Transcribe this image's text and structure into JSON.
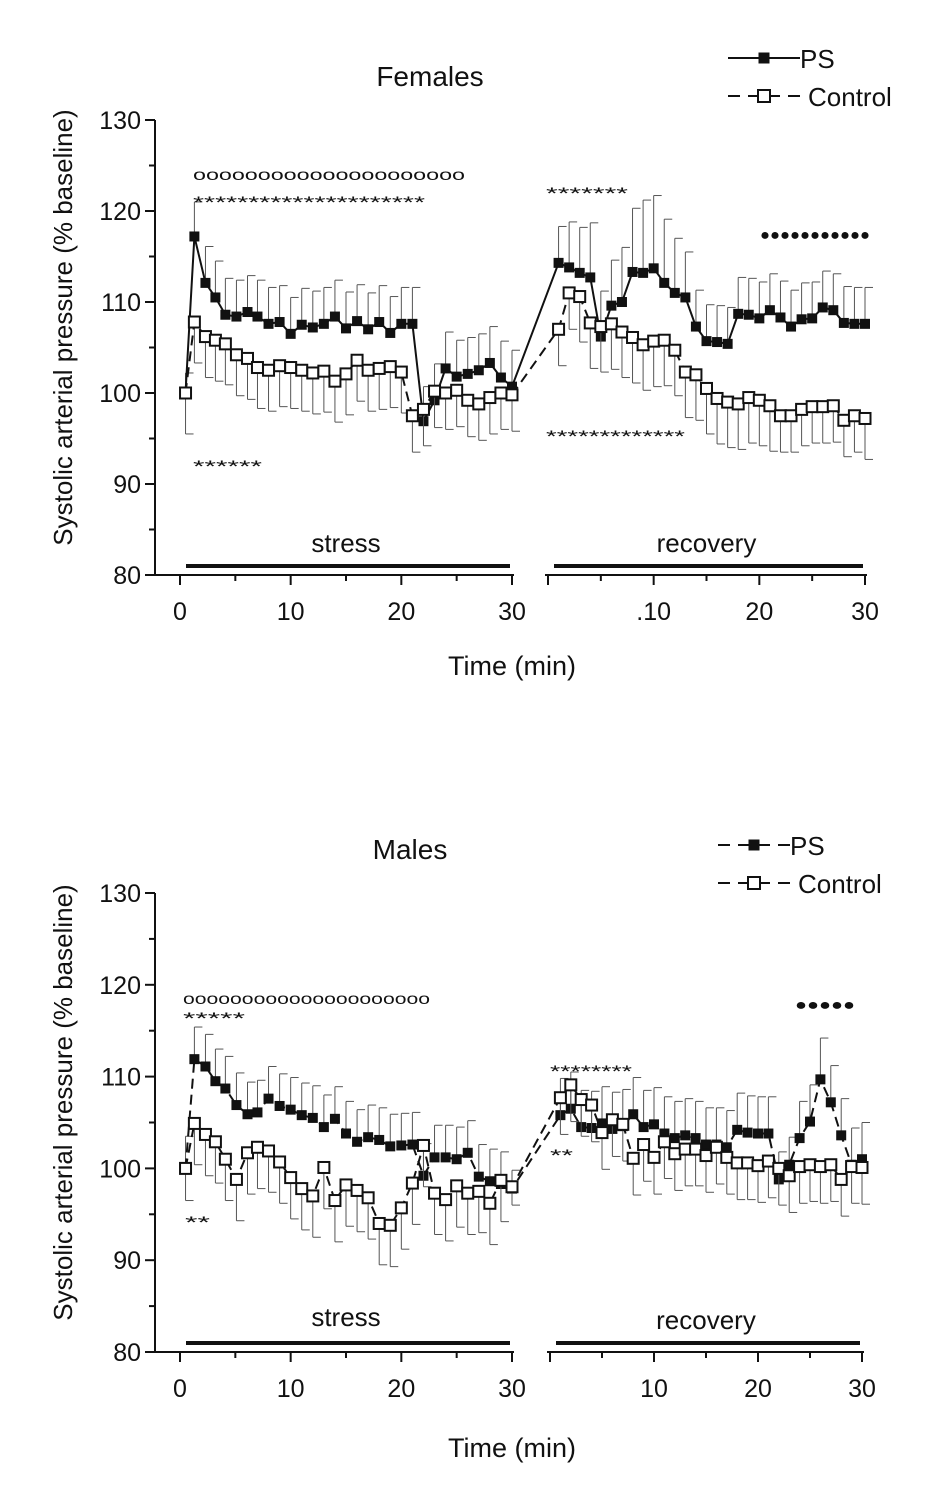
{
  "chart_data": [
    {
      "type": "line",
      "title": "Females",
      "ylabel": "Systolic arterial pressure (% baseline)",
      "xlabel": "Time (min)",
      "ylim": [
        80,
        130
      ],
      "yticks": [
        "80",
        "90",
        "100",
        "110",
        "120",
        "130"
      ],
      "segments": [
        {
          "xlim": [
            0,
            30
          ],
          "xticks": [
            "0",
            "10",
            "20",
            "30"
          ],
          "phase_label": "stress"
        },
        {
          "xlim": [
            0,
            30
          ],
          "xticks": [
            "",
            ".10",
            "20",
            "30"
          ],
          "phase_label": "recovery"
        }
      ],
      "legend": {
        "position": "top-right",
        "ps_label": "PS",
        "control_label": "Control"
      },
      "series": [
        {
          "name": "PS",
          "marker": "filled-square",
          "line": "solid",
          "stress_x": [
            0.5,
            1.3,
            2.3,
            3.2,
            4.1,
            5.1,
            6.1,
            7.0,
            8.0,
            9.0,
            10.0,
            11.0,
            12.0,
            13.0,
            14.0,
            15.0,
            16.0,
            17.0,
            18.0,
            19.0,
            20.0,
            21.0,
            22.0,
            23.0,
            24.0,
            25.0,
            26.0,
            27.0,
            28.0,
            29.0,
            30.0
          ],
          "stress_y": [
            100,
            117.2,
            112.1,
            110.5,
            108.6,
            108.4,
            108.9,
            108.4,
            107.6,
            107.8,
            106.5,
            107.5,
            107.2,
            107.6,
            108.4,
            107.1,
            107.9,
            107.0,
            107.8,
            106.6,
            107.6,
            107.6,
            96.9,
            99.2,
            102.7,
            101.8,
            102.1,
            102.5,
            103.3,
            101.7,
            100.7
          ],
          "stress_err": [
            2.2,
            3.8,
            4,
            4,
            4,
            4,
            4,
            4,
            4,
            4,
            4,
            4,
            4,
            4,
            4,
            4,
            4,
            4,
            4,
            4,
            4,
            4,
            3.8,
            4,
            4,
            4,
            4,
            4,
            4,
            4,
            4
          ],
          "recovery_x": [
            1.0,
            2.0,
            3.0,
            4.0,
            5.0,
            6.0,
            7.0,
            8.0,
            9.0,
            10.0,
            11.0,
            12.0,
            13.0,
            14.0,
            15.0,
            16.0,
            17.0,
            18.0,
            19.0,
            20.0,
            21.0,
            22.0,
            23.0,
            24.0,
            25.0,
            26.0,
            27.0,
            28.0,
            29.0,
            30.0
          ],
          "recovery_y": [
            114.3,
            113.8,
            113.2,
            112.7,
            106.2,
            109.6,
            110.0,
            113.3,
            113.2,
            113.7,
            112.1,
            111.0,
            110.5,
            107.3,
            105.7,
            105.6,
            105.4,
            108.7,
            108.6,
            108.2,
            109.1,
            108.3,
            107.3,
            108.1,
            108.2,
            109.4,
            109.1,
            107.7,
            107.6,
            107.6
          ],
          "recovery_err": [
            4,
            5,
            5,
            6,
            5,
            5,
            6,
            7,
            8,
            8,
            7,
            6,
            5,
            4,
            4,
            4,
            4,
            4,
            4,
            4,
            4,
            4,
            4,
            4,
            4,
            4,
            4,
            4,
            4,
            4
          ]
        },
        {
          "name": "Control",
          "marker": "open-square",
          "line": "dashed",
          "stress_x": [
            0.5,
            1.3,
            2.3,
            3.2,
            4.1,
            5.1,
            6.1,
            7.0,
            8.0,
            9.0,
            10.0,
            11.0,
            12.0,
            13.0,
            14.0,
            15.0,
            16.0,
            17.0,
            18.0,
            19.0,
            20.0,
            21.0,
            22.0,
            23.0,
            24.0,
            25.0,
            26.0,
            27.0,
            28.0,
            29.0,
            30.0
          ],
          "stress_y": [
            100,
            107.8,
            106.2,
            105.8,
            105.4,
            104.2,
            103.8,
            102.8,
            102.5,
            103.0,
            102.8,
            102.5,
            102.2,
            102.4,
            101.3,
            102.1,
            103.6,
            102.5,
            102.7,
            102.9,
            102.3,
            97.5,
            98.2,
            100.2,
            100.0,
            100.3,
            99.2,
            98.8,
            99.5,
            100.0,
            99.8
          ],
          "stress_err": [
            4.5,
            4.5,
            4.5,
            4.5,
            4.5,
            4.5,
            4.5,
            4.5,
            4.5,
            4.5,
            4.5,
            4.5,
            4.5,
            4.5,
            4.5,
            4.5,
            4.5,
            4.5,
            4.5,
            4.5,
            4.5,
            4,
            4,
            4,
            4,
            4,
            4,
            4,
            4,
            4,
            4
          ],
          "recovery_x": [
            1.0,
            2.0,
            3.0,
            4.0,
            5.0,
            6.0,
            7.0,
            8.0,
            9.0,
            10.0,
            11.0,
            12.0,
            13.0,
            14.0,
            15.0,
            16.0,
            17.0,
            18.0,
            19.0,
            20.0,
            21.0,
            22.0,
            23.0,
            24.0,
            25.0,
            26.0,
            27.0,
            28.0,
            29.0,
            30.0
          ],
          "recovery_y": [
            107.0,
            111.0,
            110.6,
            107.7,
            107.3,
            107.6,
            106.7,
            106.1,
            105.3,
            105.7,
            105.8,
            104.7,
            102.3,
            102.0,
            100.5,
            99.4,
            99.0,
            98.8,
            99.5,
            99.2,
            98.6,
            97.5,
            97.5,
            98.2,
            98.5,
            98.5,
            98.6,
            97.0,
            97.5,
            97.2
          ],
          "recovery_err": [
            4,
            4,
            5,
            5,
            5,
            5,
            5,
            5,
            5,
            5,
            5,
            5,
            5,
            5,
            5,
            5,
            5,
            5,
            5,
            5,
            5,
            4,
            4,
            4,
            4,
            4,
            4,
            4,
            4,
            4.5
          ]
        }
      ],
      "significance": [
        {
          "text": "ooooooooooooooooooooo",
          "style": "open-circles"
        },
        {
          "text": "*********************",
          "style": "stars"
        },
        {
          "text": "******",
          "style": "stars"
        },
        {
          "text": "*******",
          "style": "stars"
        },
        {
          "text": "*************",
          "style": "stars"
        },
        {
          "text": "●●●●●●●●●●●",
          "style": "filled-circles"
        }
      ]
    },
    {
      "type": "line",
      "title": "Males",
      "ylabel": "Systolic arterial pressure (% baseline)",
      "xlabel": "Time (min)",
      "ylim": [
        80,
        130
      ],
      "yticks": [
        "80",
        "90",
        "100",
        "110",
        "120",
        "130"
      ],
      "segments": [
        {
          "xlim": [
            0,
            30
          ],
          "xticks": [
            "0",
            "10",
            "20",
            "30"
          ],
          "phase_label": "stress"
        },
        {
          "xlim": [
            0,
            30
          ],
          "xticks": [
            "",
            "10",
            "20",
            "30"
          ],
          "phase_label": "recovery"
        }
      ],
      "legend": {
        "position": "top-right",
        "ps_label": "PS",
        "control_label": "Control"
      },
      "series": [
        {
          "name": "PS",
          "marker": "filled-square",
          "line": "dashed",
          "stress_x": [
            0.5,
            1.3,
            2.3,
            3.2,
            4.1,
            5.1,
            6.1,
            7.0,
            8.0,
            9.0,
            10.0,
            11.0,
            12.0,
            13.0,
            14.0,
            15.0,
            16.0,
            17.0,
            18.0,
            19.0,
            20.0,
            21.0,
            22.0,
            23.0,
            24.0,
            25.0,
            26.0,
            27.0,
            28.0,
            29.0,
            30.0
          ],
          "stress_y": [
            100,
            111.9,
            111.1,
            109.5,
            108.7,
            106.9,
            105.9,
            106.1,
            107.6,
            106.8,
            106.4,
            105.8,
            105.5,
            104.5,
            105.4,
            103.8,
            102.9,
            103.4,
            103.1,
            102.4,
            102.5,
            102.6,
            99.2,
            101.2,
            101.2,
            101.0,
            101.7,
            99.1,
            98.6,
            98.3,
            97.8
          ],
          "stress_err": [
            3.5,
            3.5,
            3.5,
            3.5,
            3.5,
            3.5,
            3.5,
            3.5,
            3.5,
            3.5,
            3.5,
            3.5,
            3.5,
            3.5,
            3.5,
            3.5,
            3.5,
            3.5,
            3.5,
            3.5,
            3.5,
            3.5,
            3.5,
            3.5,
            3.5,
            3.5,
            3.5,
            3.5,
            3.5,
            3.5,
            2
          ],
          "recovery_x": [
            1.0,
            2.0,
            3.0,
            4.0,
            5.0,
            6.0,
            7.0,
            8.0,
            9.0,
            10.0,
            11.0,
            12.0,
            13.0,
            14.0,
            15.0,
            16.0,
            17.0,
            18.0,
            19.0,
            20.0,
            21.0,
            22.0,
            23.0,
            24.0,
            25.0,
            26.0,
            27.0,
            28.0,
            29.0,
            30.0
          ],
          "recovery_y": [
            105.8,
            106.5,
            104.5,
            104.4,
            104.9,
            104.3,
            104.6,
            105.9,
            104.5,
            104.8,
            103.8,
            103.3,
            103.6,
            103.3,
            102.6,
            102.6,
            102.3,
            104.2,
            103.9,
            103.8,
            103.8,
            98.8,
            100.4,
            103.3,
            105.1,
            109.7,
            107.2,
            103.6,
            100.4,
            101.0
          ],
          "recovery_err": [
            4,
            4,
            4,
            4,
            4,
            4,
            4,
            4,
            4,
            4,
            4,
            4,
            4,
            4,
            4,
            4,
            4,
            4,
            4,
            4,
            4,
            3,
            3,
            4,
            4,
            4.5,
            4,
            4,
            4,
            4
          ]
        },
        {
          "name": "Control",
          "marker": "open-square",
          "line": "dashed",
          "stress_x": [
            0.5,
            1.3,
            2.3,
            3.2,
            4.1,
            5.1,
            6.1,
            7.0,
            8.0,
            9.0,
            10.0,
            11.0,
            12.0,
            13.0,
            14.0,
            15.0,
            16.0,
            17.0,
            18.0,
            19.0,
            20.0,
            21.0,
            22.0,
            23.0,
            24.0,
            25.0,
            26.0,
            27.0,
            28.0,
            29.0,
            30.0
          ],
          "stress_y": [
            100,
            104.9,
            103.7,
            102.9,
            101.0,
            98.8,
            101.7,
            102.3,
            101.9,
            100.7,
            99.0,
            97.8,
            97.0,
            100.1,
            96.5,
            98.2,
            97.6,
            96.8,
            94.0,
            93.8,
            95.7,
            98.4,
            102.5,
            97.3,
            96.6,
            98.1,
            97.3,
            97.5,
            96.2,
            98.7,
            98.0
          ],
          "stress_err": [
            3.5,
            4.5,
            4.5,
            4.5,
            4.5,
            4.5,
            4.5,
            4.5,
            4.5,
            4.5,
            4.5,
            4.5,
            4.5,
            4.5,
            4.5,
            4.5,
            4.5,
            4.5,
            4.5,
            4.5,
            4.5,
            4.5,
            4.5,
            4.5,
            4.5,
            4.5,
            4.5,
            4.5,
            4.5,
            4.5,
            2
          ],
          "recovery_x": [
            1.0,
            2.0,
            3.0,
            4.0,
            5.0,
            6.0,
            7.0,
            8.0,
            9.0,
            10.0,
            11.0,
            12.0,
            13.0,
            14.0,
            15.0,
            16.0,
            17.0,
            18.0,
            19.0,
            20.0,
            21.0,
            22.0,
            23.0,
            24.0,
            25.0,
            26.0,
            27.0,
            28.0,
            29.0,
            30.0
          ],
          "recovery_y": [
            107.7,
            109.1,
            107.5,
            106.9,
            103.9,
            105.3,
            104.8,
            101.1,
            102.6,
            101.2,
            102.9,
            101.6,
            102.1,
            102.1,
            101.4,
            102.3,
            101.2,
            100.6,
            100.6,
            100.3,
            100.8,
            100.0,
            99.2,
            100.2,
            100.4,
            100.2,
            100.4,
            98.8,
            100.2,
            100.1
          ],
          "recovery_err": [
            4,
            4,
            4,
            4,
            4,
            4,
            4,
            4,
            4,
            4,
            4,
            4,
            4,
            4,
            4,
            4,
            4,
            4,
            4,
            4,
            4,
            4,
            4,
            4,
            4,
            4,
            4,
            4,
            4,
            4
          ]
        }
      ],
      "significance": [
        {
          "text": "ooooooooooooooooooooo",
          "style": "open-circles"
        },
        {
          "text": "*****",
          "style": "stars"
        },
        {
          "text": "**",
          "style": "stars"
        },
        {
          "text": "********",
          "style": "stars"
        },
        {
          "text": "**",
          "style": "stars"
        },
        {
          "text": "●●●●●",
          "style": "filled-circles"
        }
      ]
    }
  ]
}
